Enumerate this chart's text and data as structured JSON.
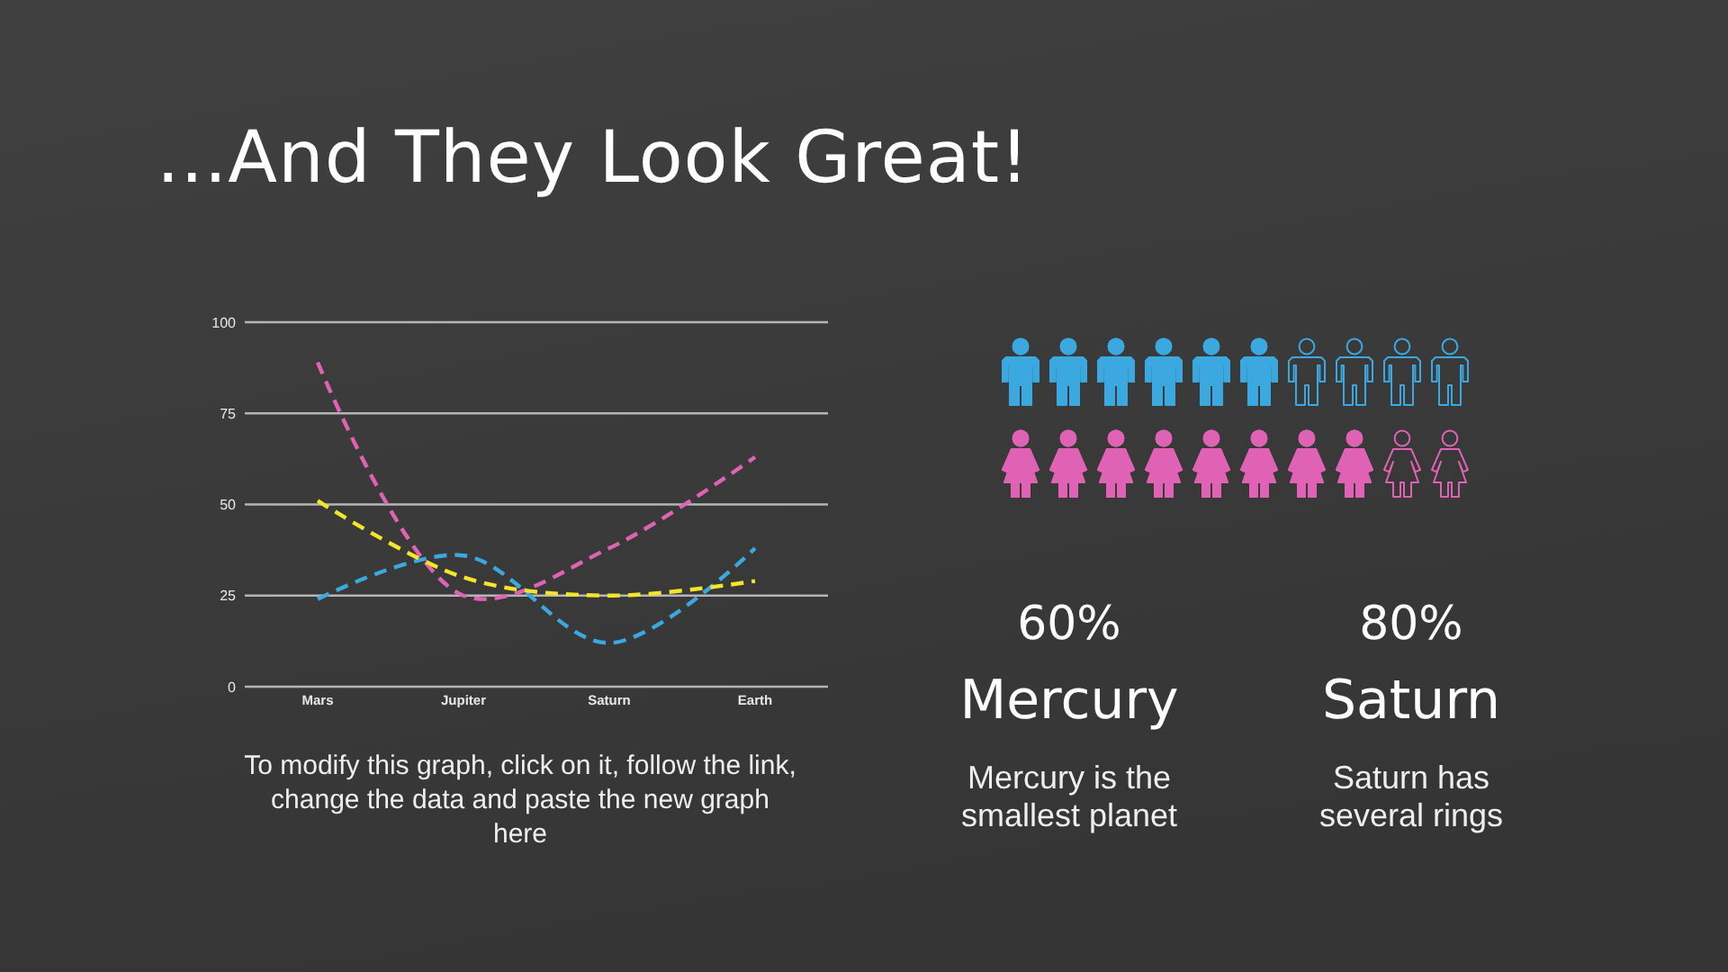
{
  "chart_data": [
    {
      "type": "line",
      "title": "...And They Look Great!",
      "categories": [
        "Mars",
        "Jupiter",
        "Saturn",
        "Earth"
      ],
      "series": [
        {
          "color": "#e062b4",
          "values": [
            89,
            25,
            38,
            63
          ]
        },
        {
          "color": "#3ba9e0",
          "values": [
            24,
            36,
            12,
            38
          ]
        },
        {
          "color": "#f2e52a",
          "values": [
            51,
            30,
            25,
            29
          ]
        }
      ],
      "ylim": [
        0,
        100
      ],
      "yticks": [
        0,
        25,
        50,
        75,
        100
      ],
      "grid": "y",
      "line_style": "dashed",
      "annotations": [
        "To modify this graph, click on it, follow the link, change the data and paste the new graph here"
      ]
    },
    {
      "type": "other",
      "categories": [
        "Mercury",
        "Saturn"
      ],
      "values": [
        60,
        80
      ],
      "value_labels": [
        "60%",
        "80%"
      ],
      "colors": [
        "#3ba9e0",
        "#e062b4"
      ],
      "annotations": [
        "Mercury is the smallest planet",
        "Saturn has several rings"
      ]
    }
  ]
}
